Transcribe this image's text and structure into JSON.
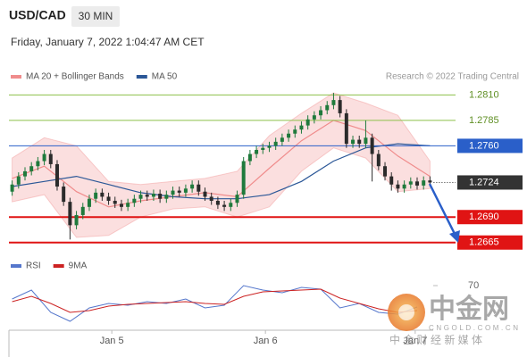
{
  "header": {
    "symbol": "USD/CAD",
    "interval": "30 MIN",
    "datetime": "Friday, January 7, 2022 1:04:47 AM CET",
    "credit": "Research © 2022 Trading Central"
  },
  "watermark": {
    "name": "中金网",
    "domain": "CNGOLD.COM.CN",
    "slogan": "中 金 财 经 新 媒 体"
  },
  "chart_data": [
    {
      "type": "candlestick",
      "up_color": "#1f7a3c",
      "down_color": "#2b2b2b",
      "xlim": [
        -0.5,
        65.5
      ],
      "ylim": [
        1.2656,
        1.282
      ],
      "open": [
        1.2715,
        1.2722,
        1.273,
        1.2735,
        1.274,
        1.2745,
        1.2752,
        1.2742,
        1.272,
        1.2705,
        1.2682,
        1.2692,
        1.27,
        1.2708,
        1.2714,
        1.271,
        1.2706,
        1.2703,
        1.27,
        1.2704,
        1.2708,
        1.2712,
        1.271,
        1.2713,
        1.2708,
        1.2712,
        1.2716,
        1.2714,
        1.2718,
        1.2722,
        1.2715,
        1.271,
        1.2706,
        1.2702,
        1.27,
        1.2704,
        1.2712,
        1.2745,
        1.2752,
        1.2756,
        1.2758,
        1.276,
        1.2764,
        1.2768,
        1.2772,
        1.2776,
        1.278,
        1.2786,
        1.279,
        1.2795,
        1.28,
        1.2805,
        1.2792,
        1.2762,
        1.2766,
        1.2762,
        1.2768,
        1.2752,
        1.274,
        1.273,
        1.2722,
        1.2718,
        1.2722,
        1.2725,
        1.2721,
        1.2726
      ],
      "high": [
        1.2726,
        1.2734,
        1.2739,
        1.2744,
        1.2749,
        1.2756,
        1.2756,
        1.2746,
        1.2724,
        1.2709,
        1.2696,
        1.2704,
        1.2712,
        1.2718,
        1.2718,
        1.2714,
        1.271,
        1.2707,
        1.2708,
        1.2712,
        1.2716,
        1.2716,
        1.2717,
        1.2717,
        1.2716,
        1.272,
        1.272,
        1.2722,
        1.2726,
        1.2726,
        1.2719,
        1.2714,
        1.271,
        1.2706,
        1.2708,
        1.2716,
        1.2749,
        1.2756,
        1.276,
        1.2762,
        1.2764,
        1.2768,
        1.2772,
        1.2776,
        1.278,
        1.2784,
        1.279,
        1.2794,
        1.2799,
        1.2804,
        1.2812,
        1.2809,
        1.2796,
        1.277,
        1.277,
        1.2785,
        1.2772,
        1.2756,
        1.2744,
        1.2734,
        1.2726,
        1.2726,
        1.2729,
        1.2729,
        1.273,
        1.273
      ],
      "low": [
        1.2711,
        1.2718,
        1.2726,
        1.2731,
        1.2736,
        1.2741,
        1.2738,
        1.2716,
        1.2701,
        1.2668,
        1.2678,
        1.2688,
        1.2696,
        1.2704,
        1.2706,
        1.2702,
        1.2699,
        1.2696,
        1.2696,
        1.27,
        1.2704,
        1.2706,
        1.2706,
        1.2704,
        1.2704,
        1.2708,
        1.271,
        1.271,
        1.2714,
        1.2711,
        1.2706,
        1.2702,
        1.2698,
        1.2696,
        1.2696,
        1.27,
        1.2708,
        1.2741,
        1.2748,
        1.2752,
        1.2754,
        1.2756,
        1.276,
        1.2764,
        1.2768,
        1.2772,
        1.2776,
        1.2782,
        1.2786,
        1.2791,
        1.2796,
        1.2788,
        1.2758,
        1.2758,
        1.2758,
        1.2758,
        1.2725,
        1.2736,
        1.2726,
        1.2716,
        1.2714,
        1.2714,
        1.2718,
        1.2717,
        1.2717,
        1.272
      ],
      "close": [
        1.2722,
        1.273,
        1.2735,
        1.274,
        1.2745,
        1.2752,
        1.2742,
        1.272,
        1.2705,
        1.2682,
        1.2692,
        1.27,
        1.2708,
        1.2714,
        1.271,
        1.2706,
        1.2703,
        1.27,
        1.2704,
        1.2708,
        1.2712,
        1.271,
        1.2713,
        1.2708,
        1.2712,
        1.2716,
        1.2714,
        1.2718,
        1.2722,
        1.2715,
        1.271,
        1.2706,
        1.2702,
        1.27,
        1.2704,
        1.2712,
        1.2745,
        1.2752,
        1.2756,
        1.2758,
        1.276,
        1.2764,
        1.2768,
        1.2772,
        1.2776,
        1.278,
        1.2786,
        1.279,
        1.2795,
        1.28,
        1.2805,
        1.2792,
        1.2762,
        1.2766,
        1.2762,
        1.2768,
        1.2752,
        1.274,
        1.273,
        1.2722,
        1.2718,
        1.2722,
        1.2725,
        1.2721,
        1.2726,
        1.2724
      ],
      "series": [
        {
          "name": "MA 20 + Bollinger Bands",
          "color": "#f08c8c",
          "x": [
            0,
            5,
            10,
            15,
            20,
            25,
            30,
            35,
            40,
            45,
            50,
            55,
            60,
            65
          ],
          "values": [
            1.2728,
            1.274,
            1.2715,
            1.27,
            1.2706,
            1.271,
            1.2714,
            1.271,
            1.2738,
            1.2765,
            1.2785,
            1.2775,
            1.275,
            1.273
          ],
          "upper": [
            1.2748,
            1.2768,
            1.276,
            1.2725,
            1.2722,
            1.2725,
            1.2728,
            1.2735,
            1.277,
            1.2792,
            1.2812,
            1.2802,
            1.279,
            1.2745
          ],
          "lower": [
            1.2705,
            1.2712,
            1.267,
            1.2672,
            1.269,
            1.2698,
            1.27,
            1.269,
            1.27,
            1.2735,
            1.2758,
            1.2748,
            1.2715,
            1.2718
          ]
        },
        {
          "name": "MA 50",
          "color": "#2b5797",
          "x": [
            0,
            5,
            10,
            15,
            20,
            25,
            30,
            35,
            40,
            45,
            50,
            55,
            60,
            65
          ],
          "values": [
            1.272,
            1.2725,
            1.273,
            1.2722,
            1.2714,
            1.271,
            1.2708,
            1.2708,
            1.2712,
            1.2725,
            1.2745,
            1.2758,
            1.2762,
            1.276
          ]
        }
      ],
      "levels": [
        {
          "value": 1.281,
          "label": "1.2810",
          "color": "#8cc04a",
          "style": "solid",
          "boxed": false
        },
        {
          "value": 1.2785,
          "label": "1.2785",
          "color": "#8cc04a",
          "style": "solid",
          "boxed": false
        },
        {
          "value": 1.276,
          "label": "1.2760",
          "color": "#2a5fc9",
          "style": "solid",
          "boxed": true
        },
        {
          "value": 1.2724,
          "label": "1.2724",
          "color": "#333333",
          "style": "dotted",
          "boxed": true
        },
        {
          "value": 1.269,
          "label": "1.2690",
          "color": "#e01414",
          "style": "solid",
          "boxed": true
        },
        {
          "value": 1.2665,
          "label": "1.2665",
          "color": "#e01414",
          "style": "solid",
          "boxed": true
        }
      ]
    },
    {
      "type": "line",
      "xlim": [
        -0.5,
        65.5
      ],
      "ylim": [
        20,
        100
      ],
      "yticks": [
        70
      ],
      "xticks": [
        {
          "value": 15.5,
          "label": "Jan 5"
        },
        {
          "value": 39.4,
          "label": "Jan 6"
        },
        {
          "value": 62.7,
          "label": "Jan 7"
        }
      ],
      "series": [
        {
          "name": "RSI",
          "color": "#5577cc",
          "x": [
            0,
            3,
            6,
            9,
            12,
            15,
            18,
            21,
            24,
            27,
            30,
            33,
            36,
            39,
            42,
            45,
            48,
            51,
            54,
            57,
            60,
            63
          ],
          "values": [
            55,
            65,
            40,
            30,
            45,
            50,
            48,
            52,
            50,
            55,
            45,
            48,
            70,
            65,
            62,
            68,
            66,
            45,
            50,
            40,
            38,
            46
          ]
        },
        {
          "name": "9MA",
          "color": "#cc2222",
          "x": [
            0,
            3,
            6,
            9,
            12,
            15,
            18,
            21,
            24,
            27,
            30,
            33,
            36,
            39,
            42,
            45,
            48,
            51,
            54,
            57,
            60,
            63
          ],
          "values": [
            52,
            58,
            50,
            40,
            42,
            47,
            49,
            50,
            51,
            52,
            50,
            49,
            58,
            63,
            64,
            65,
            66,
            56,
            50,
            44,
            40,
            42
          ]
        }
      ]
    }
  ]
}
